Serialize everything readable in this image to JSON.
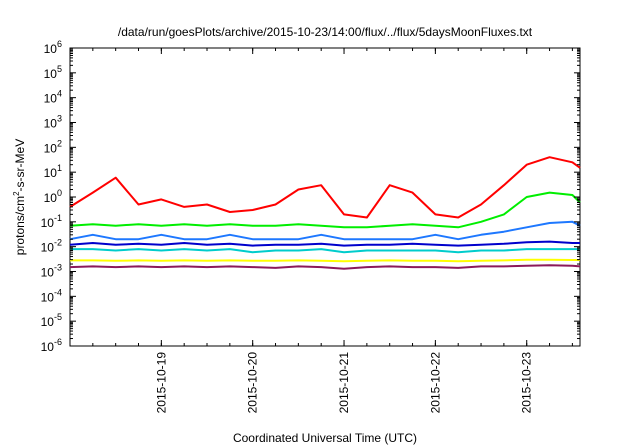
{
  "chart_data": {
    "type": "line",
    "title": "/data/run/goesPlots/archive/2015-10-23/14:00/flux/../flux/5daysMoonFluxes.txt",
    "xlabel": "Coordinated Universal Time (UTC)",
    "ylabel": "protons/cm²-s-sr-MeV",
    "yscale": "log",
    "ylim": [
      1e-06,
      1000000.0
    ],
    "xlim": [
      "2015-10-18 00:00",
      "2015-10-23 14:00"
    ],
    "grid": false,
    "legend": "none",
    "ytick_labels": [
      {
        "base": "10",
        "exp": "-6"
      },
      {
        "base": "10",
        "exp": "-5"
      },
      {
        "base": "10",
        "exp": "-4"
      },
      {
        "base": "10",
        "exp": "-3"
      },
      {
        "base": "10",
        "exp": "-2"
      },
      {
        "base": "10",
        "exp": "-1"
      },
      {
        "base": "10",
        "exp": "0"
      },
      {
        "base": "10",
        "exp": "1"
      },
      {
        "base": "10",
        "exp": "2"
      },
      {
        "base": "10",
        "exp": "3"
      },
      {
        "base": "10",
        "exp": "4"
      },
      {
        "base": "10",
        "exp": "5"
      },
      {
        "base": "10",
        "exp": "6"
      }
    ],
    "xtick_labels": [
      "2015-10-19",
      "2015-10-20",
      "2015-10-21",
      "2015-10-22",
      "2015-10-23"
    ],
    "x": [
      "2015-10-18 00:00",
      "2015-10-18 06:00",
      "2015-10-18 12:00",
      "2015-10-18 18:00",
      "2015-10-19 00:00",
      "2015-10-19 06:00",
      "2015-10-19 12:00",
      "2015-10-19 18:00",
      "2015-10-20 00:00",
      "2015-10-20 06:00",
      "2015-10-20 12:00",
      "2015-10-20 18:00",
      "2015-10-21 00:00",
      "2015-10-21 06:00",
      "2015-10-21 12:00",
      "2015-10-21 18:00",
      "2015-10-22 00:00",
      "2015-10-22 06:00",
      "2015-10-22 12:00",
      "2015-10-22 18:00",
      "2015-10-23 00:00",
      "2015-10-23 06:00",
      "2015-10-23 12:00",
      "2015-10-23 14:00"
    ],
    "series": [
      {
        "color": "#ff0000",
        "values": [
          0.4,
          1.5,
          6.0,
          0.5,
          0.8,
          0.4,
          0.5,
          0.25,
          0.3,
          0.5,
          2.0,
          3.0,
          0.2,
          0.15,
          3.0,
          1.5,
          0.2,
          0.15,
          0.5,
          3.0,
          20,
          40,
          25,
          15
        ]
      },
      {
        "color": "#00ee00",
        "values": [
          0.07,
          0.08,
          0.07,
          0.08,
          0.07,
          0.08,
          0.07,
          0.08,
          0.07,
          0.07,
          0.08,
          0.07,
          0.06,
          0.06,
          0.07,
          0.08,
          0.07,
          0.06,
          0.1,
          0.2,
          1.0,
          1.5,
          1.2,
          0.6
        ]
      },
      {
        "color": "#1e78ff",
        "values": [
          0.02,
          0.03,
          0.02,
          0.02,
          0.03,
          0.02,
          0.02,
          0.03,
          0.02,
          0.02,
          0.02,
          0.03,
          0.02,
          0.02,
          0.02,
          0.02,
          0.03,
          0.02,
          0.03,
          0.04,
          0.06,
          0.09,
          0.1,
          0.07
        ]
      },
      {
        "color": "#0000cc",
        "values": [
          0.012,
          0.014,
          0.012,
          0.013,
          0.012,
          0.014,
          0.012,
          0.013,
          0.011,
          0.012,
          0.012,
          0.013,
          0.011,
          0.012,
          0.012,
          0.013,
          0.012,
          0.011,
          0.012,
          0.013,
          0.015,
          0.016,
          0.014,
          0.014
        ]
      },
      {
        "color": "#00cccc",
        "values": [
          0.008,
          0.008,
          0.007,
          0.008,
          0.007,
          0.008,
          0.007,
          0.008,
          0.006,
          0.007,
          0.007,
          0.008,
          0.006,
          0.007,
          0.007,
          0.007,
          0.007,
          0.006,
          0.007,
          0.007,
          0.008,
          0.008,
          0.008,
          0.008
        ]
      },
      {
        "color": "#ffff00",
        "values": [
          0.0028,
          0.0028,
          0.0027,
          0.0028,
          0.0027,
          0.0028,
          0.0027,
          0.0028,
          0.0027,
          0.0027,
          0.0028,
          0.0027,
          0.0026,
          0.0027,
          0.0028,
          0.0027,
          0.0027,
          0.0026,
          0.0027,
          0.0028,
          0.003,
          0.003,
          0.0029,
          0.0029
        ]
      },
      {
        "color": "#8b1a5a",
        "values": [
          0.0015,
          0.0016,
          0.0015,
          0.0016,
          0.0015,
          0.0016,
          0.0015,
          0.0016,
          0.0015,
          0.0014,
          0.0016,
          0.0015,
          0.0013,
          0.0015,
          0.0016,
          0.0015,
          0.0015,
          0.0014,
          0.0016,
          0.0016,
          0.0017,
          0.0018,
          0.0017,
          0.0016
        ]
      }
    ]
  }
}
